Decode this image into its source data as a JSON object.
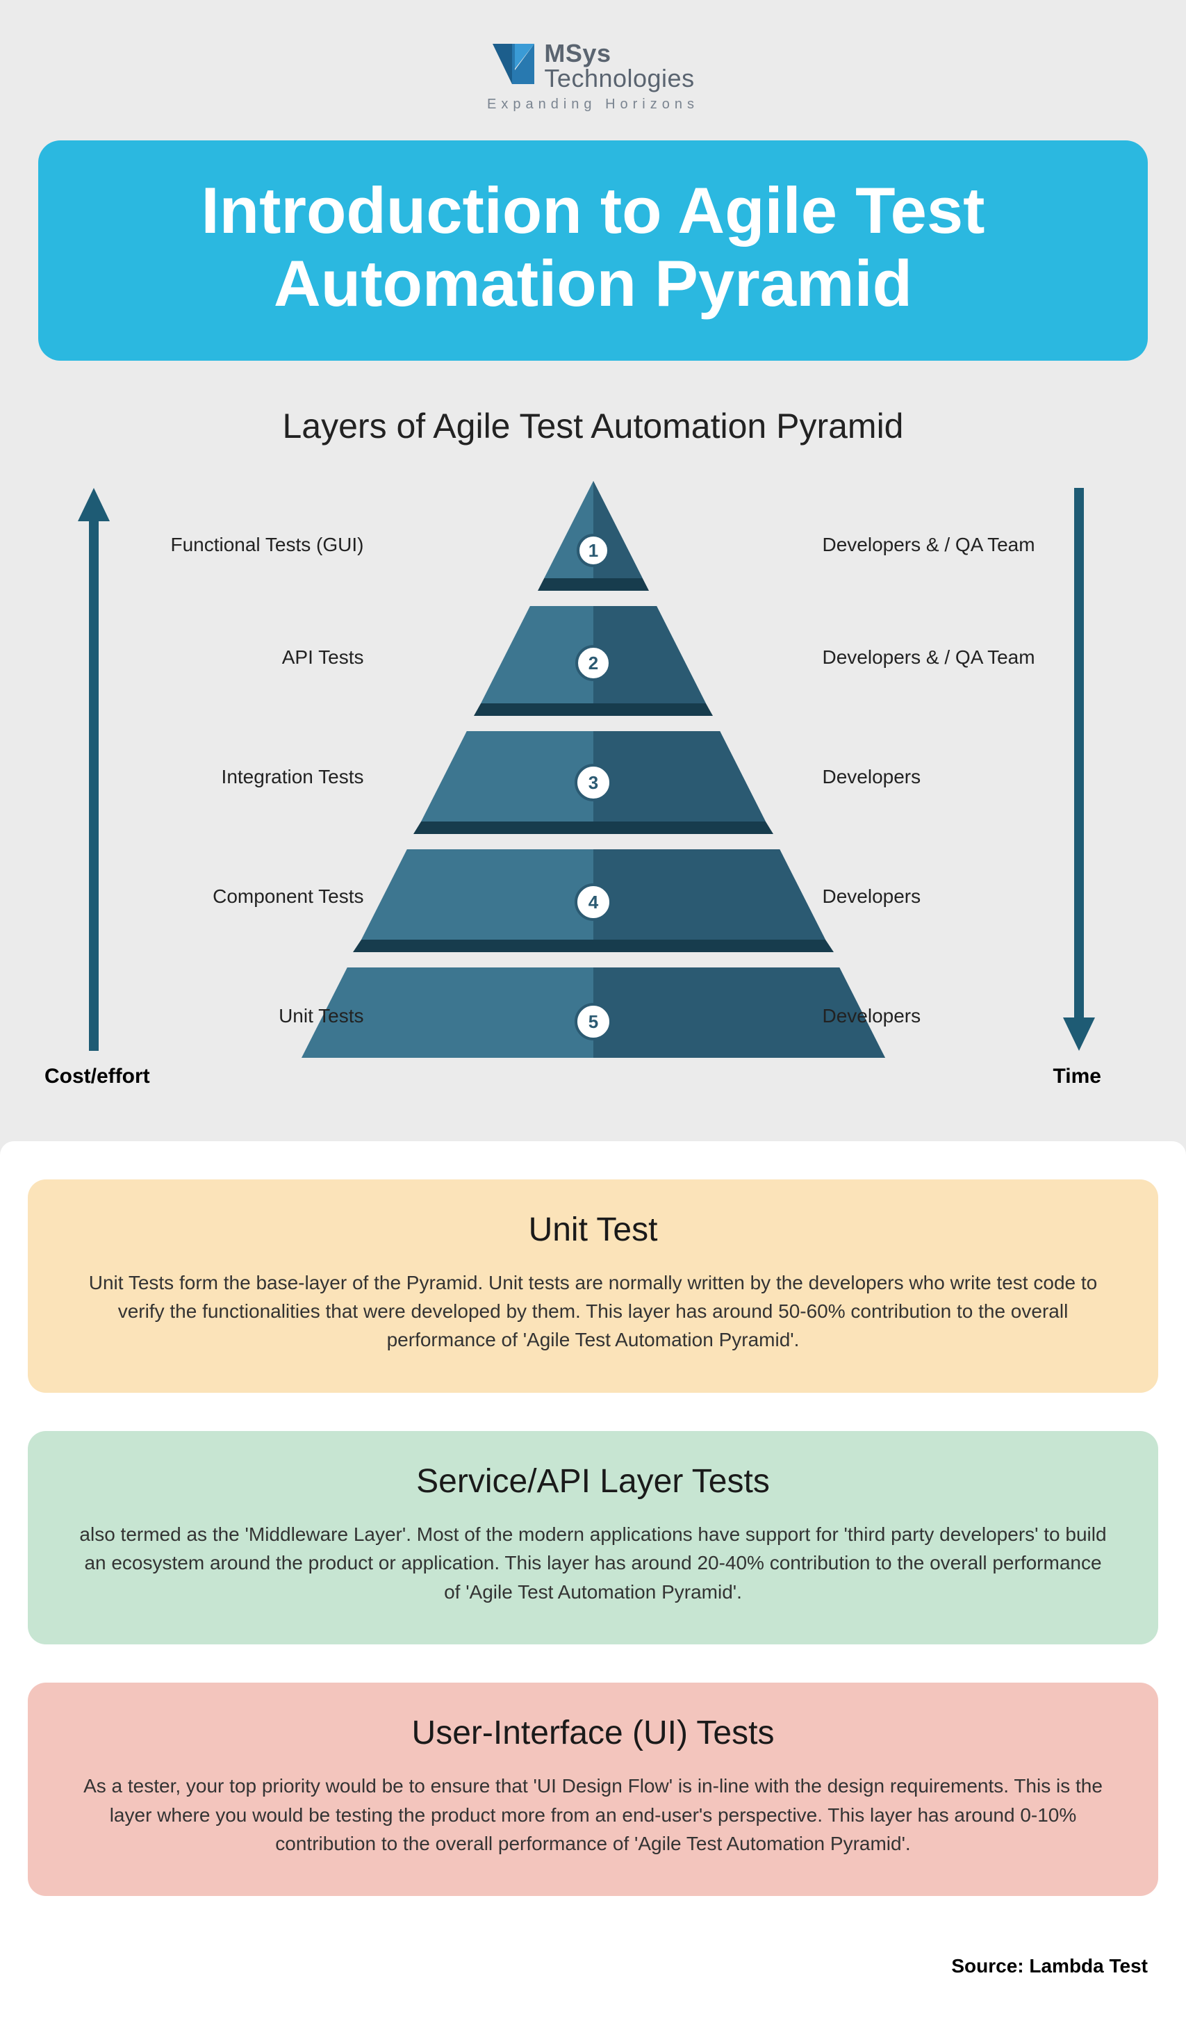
{
  "logo": {
    "name1": "MSys",
    "name2": "Technologies",
    "tagline": "Expanding Horizons",
    "mark_color": "#2879b0"
  },
  "title": "Introduction to Agile Test Automation Pyramid",
  "title_banner_bg": "#2bb8e0",
  "subtitle": "Layers of Agile Test Automation Pyramid",
  "axes": {
    "left_label": "Cost/effort",
    "right_label": "Time",
    "arrow_color": "#1e5b74"
  },
  "pyramid": {
    "type": "pyramid",
    "color_left": "#3d7690",
    "color_right": "#2b5a72",
    "shadow_color": "#173c4d",
    "gap_color": "#ebebeb",
    "badge_fill": "#ffffff",
    "badge_stroke": "#2b5a72",
    "layers": [
      {
        "n": "1",
        "left": "Functional Tests (GUI)",
        "right": "Developers & / QA Team"
      },
      {
        "n": "2",
        "left": "API Tests",
        "right": "Developers & / QA Team"
      },
      {
        "n": "3",
        "left": "Integration Tests",
        "right": "Developers"
      },
      {
        "n": "4",
        "left": "Component Tests",
        "right": "Developers"
      },
      {
        "n": "5",
        "left": "Unit Tests",
        "right": "Developers"
      }
    ],
    "layer_y": [
      86,
      248,
      420,
      592,
      764
    ],
    "label_font_size": 28
  },
  "cards": [
    {
      "title": "Unit Test",
      "body": "Unit Tests form the base-layer of the Pyramid. Unit tests are normally written by the developers who write test code to verify the functionalities that were developed by them. This layer has around 50-60% contribution to the overall performance of 'Agile Test Automation Pyramid'.",
      "bg": "#fbe3b9"
    },
    {
      "title": "Service/API Layer Tests",
      "body": "also termed as the 'Middleware Layer'. Most of the modern applications have support for 'third party developers' to build an ecosystem around the product or application. This layer has around 20-40% contribution to the overall performance of 'Agile Test Automation Pyramid'.",
      "bg": "#c7e5d2"
    },
    {
      "title": "User-Interface (UI) Tests",
      "body": "As a tester, your top priority would be to ensure that 'UI Design Flow' is in-line with the design requirements. This is the layer where you would be testing the product more from an end-user's perspective. This layer has around 0-10% contribution to the overall performance of 'Agile Test Automation Pyramid'.",
      "bg": "#f3c5bd"
    }
  ],
  "source": "Source: Lambda Test",
  "page_bg": "#ebebeb"
}
